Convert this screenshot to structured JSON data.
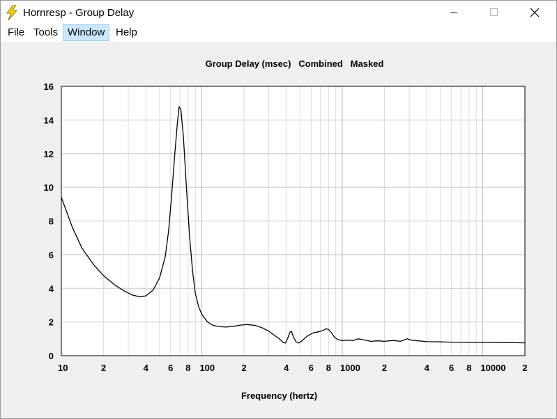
{
  "window": {
    "title": "Hornresp - Group Delay",
    "controls": [
      "minimize",
      "maximize",
      "close"
    ]
  },
  "menu": {
    "file": "File",
    "tools": "Tools",
    "window": "Window",
    "help": "Help"
  },
  "colors": {
    "accent_menu": "#cce8ff",
    "plot_line": "#000000",
    "grid": "#c8c8c8",
    "icon_yellow": "#ffd800"
  },
  "chart_data": {
    "type": "line",
    "title": "Group Delay (msec)   Combined   Masked",
    "xlabel": "Frequency (hertz)",
    "ylabel": "",
    "x_scale": "log",
    "xlim": [
      10,
      20000
    ],
    "ylim": [
      0,
      16
    ],
    "y_ticks": [
      "0",
      "2",
      "4",
      "6",
      "8",
      "10",
      "12",
      "14",
      "16"
    ],
    "x_ticks": [
      {
        "value": 10,
        "label": "10"
      },
      {
        "value": 20,
        "label": "2"
      },
      {
        "value": 40,
        "label": "4"
      },
      {
        "value": 60,
        "label": "6"
      },
      {
        "value": 80,
        "label": "8"
      },
      {
        "value": 100,
        "label": "100"
      },
      {
        "value": 200,
        "label": "2"
      },
      {
        "value": 400,
        "label": "4"
      },
      {
        "value": 600,
        "label": "6"
      },
      {
        "value": 800,
        "label": "8"
      },
      {
        "value": 1000,
        "label": "1000"
      },
      {
        "value": 2000,
        "label": "2"
      },
      {
        "value": 4000,
        "label": "4"
      },
      {
        "value": 6000,
        "label": "6"
      },
      {
        "value": 8000,
        "label": "8"
      },
      {
        "value": 10000,
        "label": "10000"
      },
      {
        "value": 20000,
        "label": "2"
      }
    ],
    "grid": true,
    "series": [
      {
        "points": [
          [
            10,
            9.4
          ],
          [
            12,
            7.6
          ],
          [
            14,
            6.4
          ],
          [
            17,
            5.4
          ],
          [
            20,
            4.75
          ],
          [
            24,
            4.2
          ],
          [
            28,
            3.85
          ],
          [
            32,
            3.6
          ],
          [
            36,
            3.5
          ],
          [
            40,
            3.55
          ],
          [
            45,
            3.9
          ],
          [
            50,
            4.6
          ],
          [
            55,
            5.9
          ],
          [
            58,
            7.4
          ],
          [
            61,
            9.5
          ],
          [
            64,
            11.8
          ],
          [
            67,
            13.8
          ],
          [
            69,
            14.8
          ],
          [
            71,
            14.6
          ],
          [
            74,
            13.0
          ],
          [
            78,
            9.8
          ],
          [
            82,
            7.0
          ],
          [
            86,
            5.0
          ],
          [
            90,
            3.7
          ],
          [
            95,
            2.9
          ],
          [
            100,
            2.45
          ],
          [
            110,
            2.0
          ],
          [
            120,
            1.8
          ],
          [
            135,
            1.72
          ],
          [
            150,
            1.7
          ],
          [
            170,
            1.75
          ],
          [
            190,
            1.82
          ],
          [
            210,
            1.85
          ],
          [
            240,
            1.8
          ],
          [
            270,
            1.65
          ],
          [
            300,
            1.45
          ],
          [
            330,
            1.2
          ],
          [
            360,
            0.98
          ],
          [
            380,
            0.78
          ],
          [
            395,
            0.75
          ],
          [
            410,
            1.05
          ],
          [
            425,
            1.4
          ],
          [
            435,
            1.45
          ],
          [
            450,
            1.1
          ],
          [
            470,
            0.82
          ],
          [
            490,
            0.75
          ],
          [
            520,
            0.9
          ],
          [
            560,
            1.15
          ],
          [
            620,
            1.35
          ],
          [
            680,
            1.42
          ],
          [
            730,
            1.5
          ],
          [
            770,
            1.6
          ],
          [
            800,
            1.55
          ],
          [
            840,
            1.35
          ],
          [
            880,
            1.1
          ],
          [
            930,
            0.95
          ],
          [
            1000,
            0.9
          ],
          [
            1100,
            0.92
          ],
          [
            1200,
            0.9
          ],
          [
            1300,
            1.0
          ],
          [
            1400,
            0.95
          ],
          [
            1600,
            0.85
          ],
          [
            1800,
            0.88
          ],
          [
            2000,
            0.85
          ],
          [
            2300,
            0.9
          ],
          [
            2600,
            0.85
          ],
          [
            2900,
            1.0
          ],
          [
            3100,
            0.92
          ],
          [
            3500,
            0.88
          ],
          [
            4000,
            0.83
          ],
          [
            5000,
            0.82
          ],
          [
            6000,
            0.8
          ],
          [
            7000,
            0.8
          ],
          [
            8000,
            0.79
          ],
          [
            9000,
            0.79
          ],
          [
            10000,
            0.78
          ],
          [
            12000,
            0.78
          ],
          [
            14000,
            0.77
          ],
          [
            17000,
            0.77
          ],
          [
            20000,
            0.76
          ]
        ]
      }
    ]
  }
}
